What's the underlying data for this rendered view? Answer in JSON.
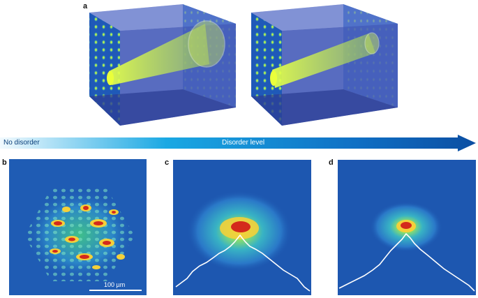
{
  "panels": {
    "a": "a",
    "b": "b",
    "c": "c",
    "d": "d"
  },
  "arrow": {
    "left_label": "No disorder",
    "center_label": "Disorder level"
  },
  "scale_bar": {
    "label": "100 µm"
  },
  "colors": {
    "map_background": "#1d57b0",
    "box_face": "#4a5fb8",
    "beam_green": "#c8f23a",
    "arrow_light": "#e8f6fd",
    "arrow_mid": "#1aa8e3",
    "arrow_dark": "#0c4ea2",
    "hot": "#d42a1c"
  }
}
